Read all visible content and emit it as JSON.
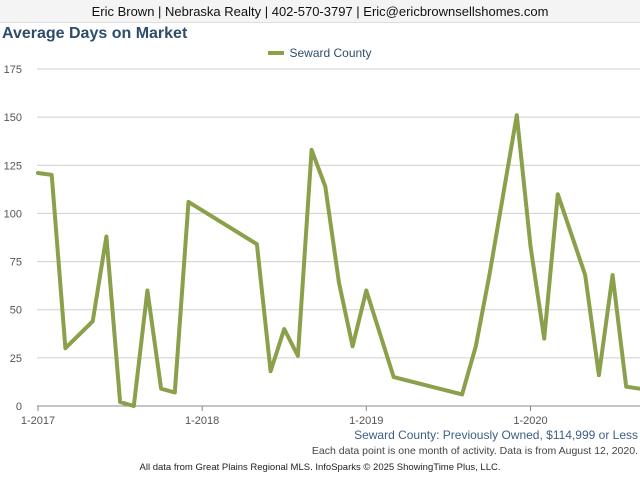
{
  "header": {
    "contact": "Eric Brown | Nebraska Realty | 402-570-3797 | Eric@ericbrownsellshomes.com"
  },
  "chart_title": "Average Days on Market",
  "chart_data": {
    "type": "line",
    "title": "Average Days on Market",
    "xlabel": "",
    "ylabel": "",
    "ylim": [
      0,
      175
    ],
    "yticks": [
      0,
      25,
      50,
      75,
      100,
      125,
      150,
      175
    ],
    "xtick_labels": [
      "1-2017",
      "1-2018",
      "1-2019",
      "1-2020"
    ],
    "legend_position": "top-center",
    "grid": true,
    "color": "#8aa04a",
    "series": [
      {
        "name": "Seward County",
        "points": [
          {
            "x": "2017-01",
            "y": 121
          },
          {
            "x": "2017-02",
            "y": 120
          },
          {
            "x": "2017-03",
            "y": 30
          },
          {
            "x": "2017-05",
            "y": 44
          },
          {
            "x": "2017-06",
            "y": 88
          },
          {
            "x": "2017-07",
            "y": 2
          },
          {
            "x": "2017-08",
            "y": 0
          },
          {
            "x": "2017-09",
            "y": 60
          },
          {
            "x": "2017-10",
            "y": 9
          },
          {
            "x": "2017-11",
            "y": 7
          },
          {
            "x": "2017-12",
            "y": 106
          },
          {
            "x": "2018-05",
            "y": 84
          },
          {
            "x": "2018-06",
            "y": 18
          },
          {
            "x": "2018-07",
            "y": 40
          },
          {
            "x": "2018-08",
            "y": 26
          },
          {
            "x": "2018-09",
            "y": 133
          },
          {
            "x": "2018-10",
            "y": 114
          },
          {
            "x": "2018-11",
            "y": 64
          },
          {
            "x": "2018-12",
            "y": 31
          },
          {
            "x": "2019-01",
            "y": 60
          },
          {
            "x": "2019-03",
            "y": 15
          },
          {
            "x": "2019-08",
            "y": 6
          },
          {
            "x": "2019-09",
            "y": 31
          },
          {
            "x": "2019-10",
            "y": 68
          },
          {
            "x": "2019-12",
            "y": 151
          },
          {
            "x": "2020-01",
            "y": 83
          },
          {
            "x": "2020-02",
            "y": 35
          },
          {
            "x": "2020-03",
            "y": 110
          },
          {
            "x": "2020-05",
            "y": 68
          },
          {
            "x": "2020-06",
            "y": 16
          },
          {
            "x": "2020-07",
            "y": 68
          },
          {
            "x": "2020-08",
            "y": 10
          },
          {
            "x": "2020-09",
            "y": 9
          }
        ]
      }
    ]
  },
  "subtitle": "Seward County: Previously Owned, $114,999 or Less",
  "note": "Each data point is one month of activity. Data is from August 12, 2020.",
  "footer": "All data from Great Plains Regional MLS. InfoSparks © 2025 ShowingTime Plus, LLC."
}
